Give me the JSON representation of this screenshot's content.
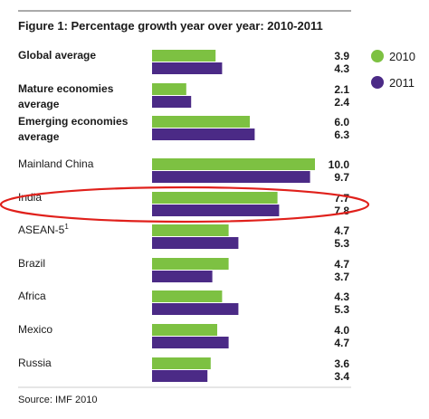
{
  "chart_data": {
    "type": "bar",
    "orientation": "horizontal",
    "title": "Figure 1: Percentage growth year over year: 2010-2011",
    "categories": [
      "Global average",
      "Mature economies average",
      "Emerging economies average",
      "Mainland China",
      "India",
      "ASEAN-5",
      "Brazil",
      "Africa",
      "Mexico",
      "Russia"
    ],
    "category_lines": [
      [
        "Global average"
      ],
      [
        "Mature economies",
        "average"
      ],
      [
        "Emerging economies",
        "average"
      ],
      [
        "Mainland China"
      ],
      [
        "India"
      ],
      [
        "ASEAN-5"
      ],
      [
        "Brazil"
      ],
      [
        "Africa"
      ],
      [
        "Mexico"
      ],
      [
        "Russia"
      ]
    ],
    "category_bold": [
      true,
      true,
      true,
      false,
      false,
      false,
      false,
      false,
      false,
      false
    ],
    "superscripts": {
      "ASEAN-5": "1"
    },
    "series": [
      {
        "name": "2010",
        "color": "#7dc142",
        "values": [
          3.9,
          2.1,
          6.0,
          10.0,
          7.7,
          4.7,
          4.7,
          4.3,
          4.0,
          3.6
        ],
        "labels": [
          "3.9",
          "2.1",
          "6.0",
          "10.0",
          "7.7",
          "4.7",
          "4.7",
          "4.3",
          "4.0",
          "3.6"
        ]
      },
      {
        "name": "2011",
        "color": "#4b2a86",
        "values": [
          4.3,
          2.4,
          6.3,
          9.7,
          7.8,
          5.3,
          3.7,
          5.3,
          4.7,
          3.4
        ],
        "labels": [
          "4.3",
          "2.4",
          "6.3",
          "9.7",
          "7.8",
          "5.3",
          "3.7",
          "5.3",
          "4.7",
          "3.4"
        ]
      }
    ],
    "xlim": [
      0,
      10
    ],
    "grid": false,
    "legend_position": "top-right",
    "highlight": {
      "category": "India",
      "color": "#e0201b",
      "style": "hand-drawn ellipse"
    },
    "source": "Source: IMF 2010"
  }
}
